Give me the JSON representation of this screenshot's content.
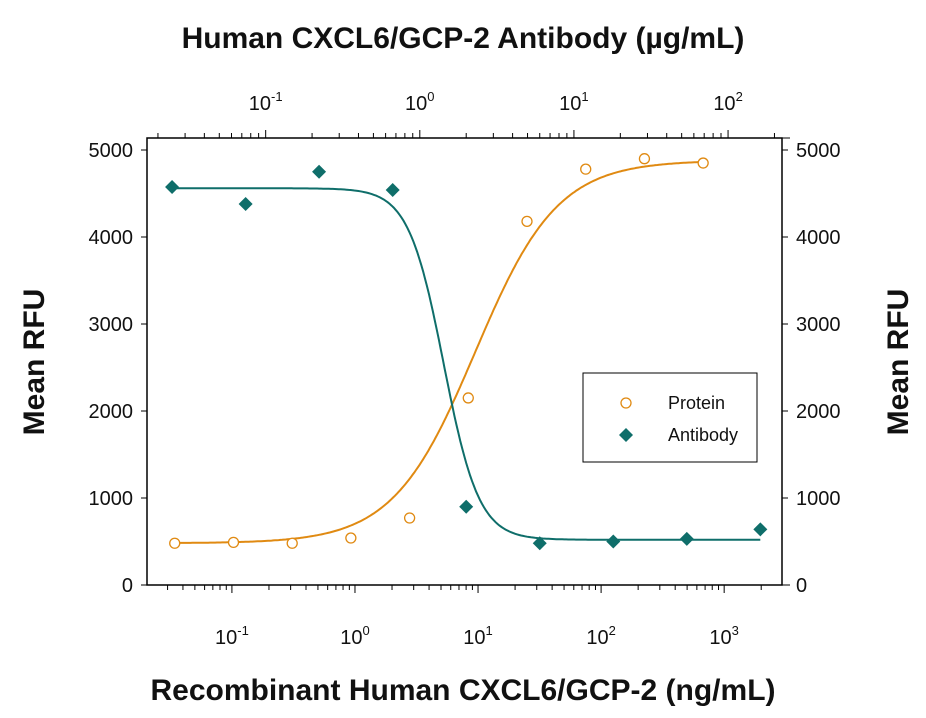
{
  "chart_data": {
    "type": "scatter",
    "title": "Human CXCL6/GCP-2 Antibody (µg/mL)",
    "xlabel": "Recombinant Human CXCL6/GCP-2 (ng/mL)",
    "x2label": "Human CXCL6/GCP-2 Antibody (µg/mL)",
    "ylabel": "Mean RFU",
    "y2label": "Mean RFU",
    "xscale": "log",
    "xlim_log10": [
      -1.69,
      3.47
    ],
    "x2lim_log10": [
      -1.77,
      2.35
    ],
    "ylim": [
      0,
      5000
    ],
    "yticks": [
      "0",
      "1000",
      "2000",
      "3000",
      "4000",
      "5000"
    ],
    "xticks": [
      {
        "base": "10",
        "exp": "-1"
      },
      {
        "base": "10",
        "exp": "0"
      },
      {
        "base": "10",
        "exp": "1"
      },
      {
        "base": "10",
        "exp": "2"
      },
      {
        "base": "10",
        "exp": "3"
      }
    ],
    "x2ticks": [
      {
        "base": "10",
        "exp": "-1"
      },
      {
        "base": "10",
        "exp": "0"
      },
      {
        "base": "10",
        "exp": "1"
      },
      {
        "base": "10",
        "exp": "2"
      }
    ],
    "legend": {
      "position": "center-right",
      "entries": [
        "Protein",
        "Antibody"
      ]
    },
    "series": [
      {
        "name": "Protein",
        "axis": "bottom",
        "marker": "open-circle",
        "color": "#e08a12",
        "x": [
          0.0343,
          0.103,
          0.309,
          0.926,
          2.78,
          8.33,
          25,
          75,
          225,
          675
        ],
        "y": [
          480,
          490,
          480,
          540,
          770,
          2150,
          4180,
          4780,
          4900,
          4850
        ],
        "fit": {
          "bottom": 480,
          "top": 4880,
          "ec50": 9.5,
          "hill": 1.3
        }
      },
      {
        "name": "Antibody",
        "axis": "top",
        "marker": "filled-diamond",
        "color": "#0f6e6a",
        "x": [
          0.0247,
          0.0741,
          0.222,
          0.667,
          2,
          6,
          18,
          54,
          162
        ],
        "y": [
          4575,
          4380,
          4750,
          4540,
          900,
          480,
          500,
          530,
          640
        ],
        "fit": {
          "bottom": 520,
          "top": 4560,
          "ec50": 1.43,
          "hill": 3.8
        }
      }
    ]
  }
}
